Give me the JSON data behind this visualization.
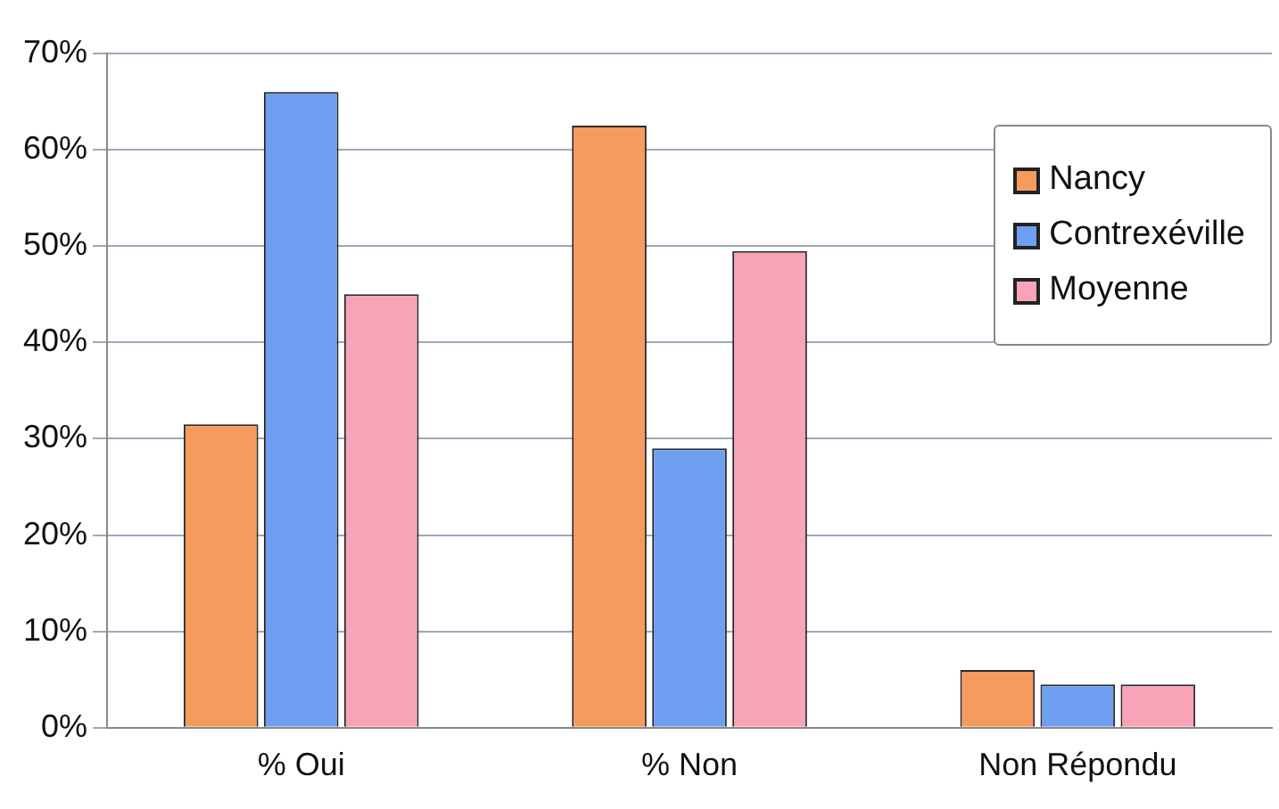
{
  "chart_data": {
    "type": "bar",
    "categories": [
      "% Oui",
      "% Non",
      "Non Répondu"
    ],
    "series": [
      {
        "name": "Nancy",
        "color": "#f79a5e",
        "values": [
          31.5,
          62.5,
          6
        ]
      },
      {
        "name": "Contrexéville",
        "color": "#6f9ff0",
        "values": [
          66,
          29,
          4.5
        ]
      },
      {
        "name": "Moyenne",
        "color": "#f7a3b8",
        "values": [
          45,
          49.5,
          4.5
        ]
      }
    ],
    "ylim": [
      0,
      70
    ],
    "yticks": [
      {
        "value": 0,
        "label": "0%"
      },
      {
        "value": 10,
        "label": "10%"
      },
      {
        "value": 20,
        "label": "20%"
      },
      {
        "value": 30,
        "label": "30%"
      },
      {
        "value": 40,
        "label": "40%"
      },
      {
        "value": 50,
        "label": "50%"
      },
      {
        "value": 60,
        "label": "60%"
      },
      {
        "value": 70,
        "label": "70%"
      }
    ],
    "grid": "y",
    "legend": "top right"
  }
}
